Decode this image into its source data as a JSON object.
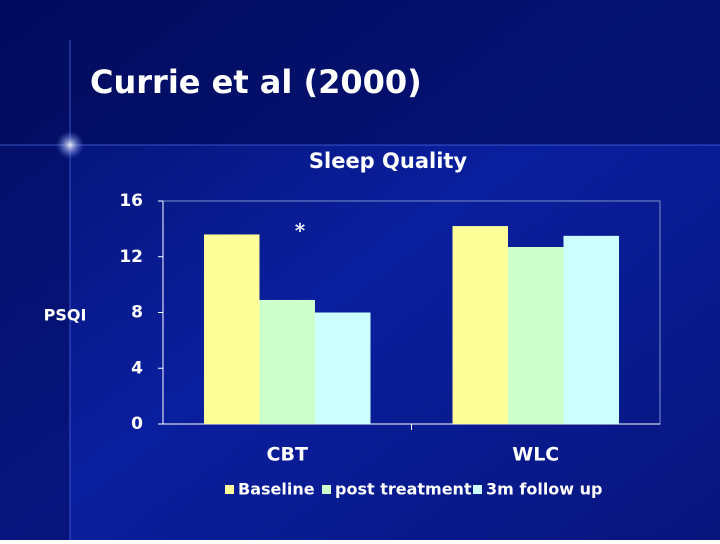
{
  "slide_title": "Currie et al (2000)",
  "chart_data": {
    "type": "bar",
    "title": "Sleep Quality",
    "y_label": "PSQI",
    "annotation": "*",
    "categories": [
      "CBT",
      "WLC"
    ],
    "series": [
      {
        "name": "Baseline",
        "color": "#ffff99",
        "values": [
          13.6,
          14.2
        ]
      },
      {
        "name": "post treatment",
        "color": "#ccffcc",
        "values": [
          8.9,
          12.7
        ]
      },
      {
        "name": "3m follow up",
        "color": "#ccffff",
        "values": [
          8.0,
          13.5
        ]
      }
    ],
    "ylim": [
      0,
      16
    ],
    "yticks": [
      0,
      4,
      8,
      12,
      16
    ],
    "grid": false,
    "legend": "bottom"
  }
}
